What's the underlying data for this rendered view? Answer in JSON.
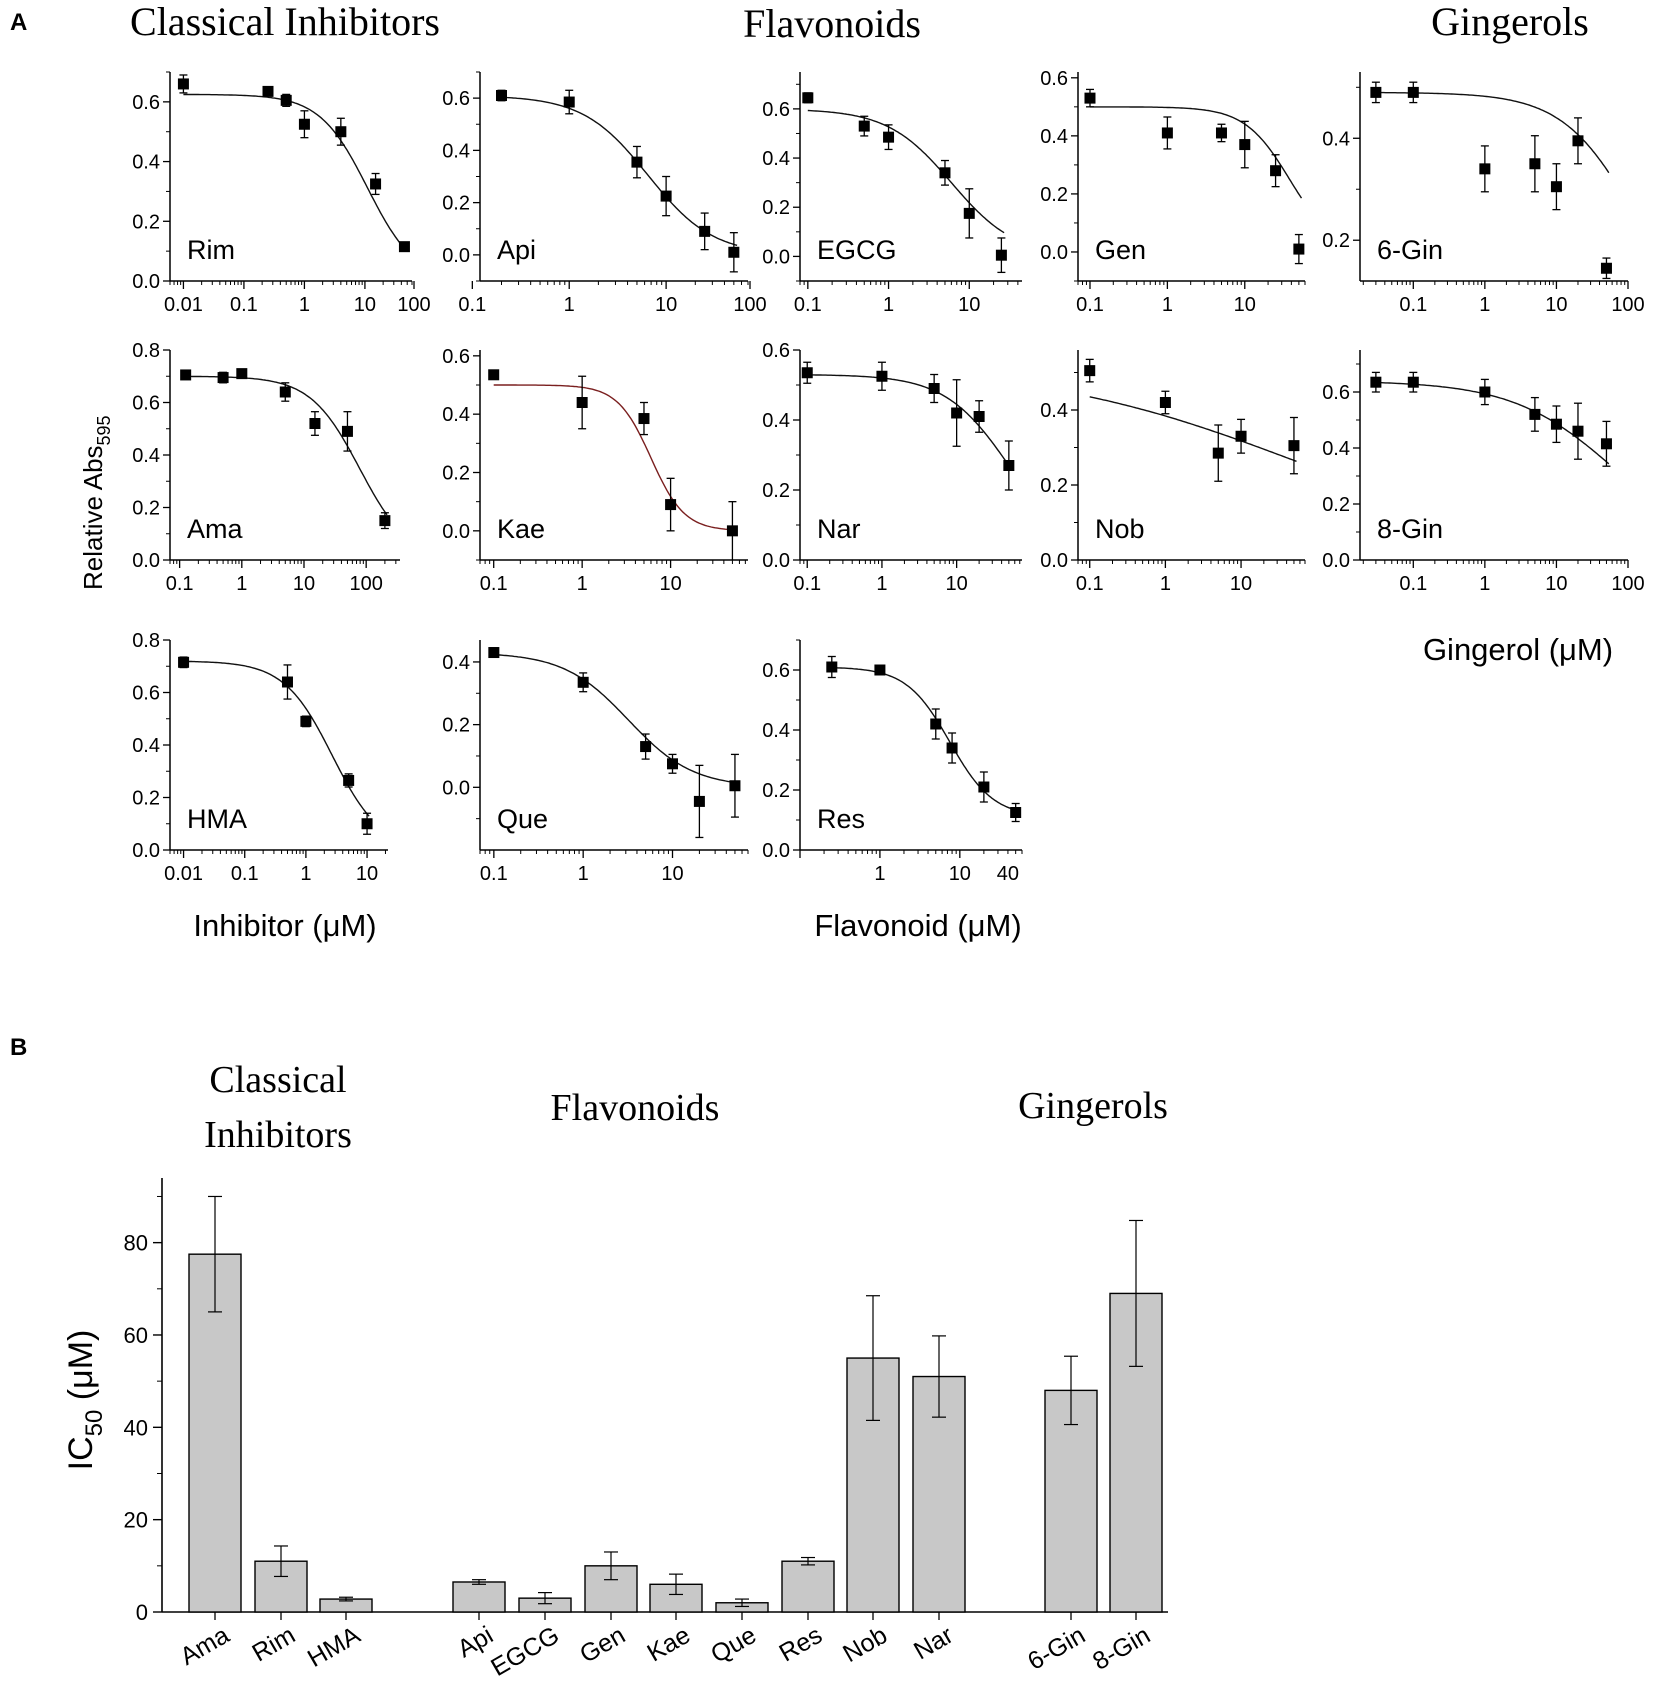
{
  "figure": {
    "panel_a_label": "A",
    "panel_b_label": "B",
    "headers_a": [
      "Classical Inhibitors",
      "Flavonoids",
      "Gingerols"
    ],
    "headers_b": [
      "Classical",
      "Inhibitors",
      "Flavonoids",
      "Gingerols"
    ],
    "ylabel_a": "Relative Abs",
    "ylabel_a_sub": "595",
    "xlabel_inhibitor": "Inhibitor (μM)",
    "xlabel_flavonoid": "Flavonoid (μM)",
    "xlabel_gingerol": "Gingerol (μM)"
  },
  "chart_data": [
    {
      "type": "scatter",
      "title": "Rim",
      "xscale": "log",
      "xlim": [
        0.006,
        60
      ],
      "ylim": [
        0,
        0.7
      ],
      "xticks": [
        0.01,
        0.1,
        1,
        10,
        100
      ],
      "xticklabels": [
        "0.01",
        "0.1",
        "1",
        "10",
        "100"
      ],
      "yticks": [
        0,
        0.2,
        0.4,
        0.6
      ],
      "yticklabels": [
        "0.0",
        "0.2",
        "0.4",
        "0.6"
      ],
      "x": [
        0.01,
        0.25,
        0.5,
        1,
        4,
        15,
        45
      ],
      "y": [
        0.66,
        0.635,
        0.605,
        0.525,
        0.5,
        0.325,
        0.115
      ],
      "err": [
        0.03,
        0.015,
        0.02,
        0.045,
        0.045,
        0.035,
        0.015
      ],
      "fit": {
        "top": 0.625,
        "bottom": 0,
        "ic50": 11,
        "hill": 1.1,
        "color": "#111111"
      }
    },
    {
      "type": "scatter",
      "title": "Api",
      "xscale": "log",
      "xlim": [
        0.12,
        70
      ],
      "ylim": [
        -0.1,
        0.7
      ],
      "xticks": [
        0.1,
        1,
        10,
        100
      ],
      "xticklabels": [
        "0.1",
        "1",
        "10",
        "100"
      ],
      "yticks": [
        0,
        0.2,
        0.4,
        0.6
      ],
      "yticklabels": [
        "0.0",
        "0.2",
        "0.4",
        "0.6"
      ],
      "x": [
        0.2,
        1,
        5,
        10,
        25,
        50
      ],
      "y": [
        0.61,
        0.585,
        0.355,
        0.225,
        0.09,
        0.01
      ],
      "err": [
        0.02,
        0.045,
        0.06,
        0.075,
        0.07,
        0.075
      ],
      "fit": {
        "top": 0.61,
        "bottom": 0,
        "ic50": 6.5,
        "hill": 1.3,
        "color": "#111111"
      }
    },
    {
      "type": "scatter",
      "title": "EGCG",
      "xscale": "log",
      "xlim": [
        0.08,
        45
      ],
      "ylim": [
        -0.1,
        0.75
      ],
      "xticks": [
        0.1,
        1,
        10
      ],
      "xticklabels": [
        "0.1",
        "1",
        "10"
      ],
      "yticks": [
        0,
        0.2,
        0.4,
        0.6
      ],
      "yticklabels": [
        "0.0",
        "0.2",
        "0.4",
        "0.6"
      ],
      "x": [
        0.1,
        0.5,
        1,
        5,
        10,
        25
      ],
      "y": [
        0.645,
        0.53,
        0.485,
        0.34,
        0.175,
        0.005
      ],
      "err": [
        0.02,
        0.04,
        0.05,
        0.05,
        0.1,
        0.07
      ],
      "fit": {
        "top": 0.6,
        "bottom": 0,
        "ic50": 6,
        "hill": 1.1,
        "color": "#111111"
      }
    },
    {
      "type": "scatter",
      "title": "Gen",
      "xscale": "log",
      "xlim": [
        0.07,
        60
      ],
      "ylim": [
        -0.1,
        0.62
      ],
      "xticks": [
        0.1,
        1,
        10
      ],
      "xticklabels": [
        "0.1",
        "1",
        "10"
      ],
      "yticks": [
        0,
        0.2,
        0.4,
        0.6
      ],
      "yticklabels": [
        "0.0",
        "0.2",
        "0.4",
        "0.6"
      ],
      "x": [
        0.1,
        1,
        5,
        10,
        25,
        50
      ],
      "y": [
        0.53,
        0.41,
        0.41,
        0.37,
        0.28,
        0.01
      ],
      "err": [
        0.03,
        0.055,
        0.03,
        0.08,
        0.055,
        0.05
      ],
      "fit": {
        "top": 0.5,
        "bottom": 0,
        "ic50": 38,
        "hill": 1.5,
        "color": "#111111"
      }
    },
    {
      "type": "scatter",
      "title": "6-Gin",
      "xscale": "log",
      "xlim": [
        0.018,
        100
      ],
      "ylim": [
        0.12,
        0.53
      ],
      "xticks": [
        0.1,
        1,
        10,
        100
      ],
      "xticklabels": [
        "0.1",
        "1",
        "10",
        "100"
      ],
      "yticks": [
        0.2,
        0.4
      ],
      "yticklabels": [
        "0.2",
        "0.4"
      ],
      "x": [
        0.03,
        0.1,
        1,
        5,
        10,
        20,
        50
      ],
      "y": [
        0.49,
        0.49,
        0.34,
        0.35,
        0.305,
        0.395,
        0.145
      ],
      "err": [
        0.02,
        0.02,
        0.045,
        0.055,
        0.045,
        0.045,
        0.02
      ],
      "fit": {
        "top": 0.49,
        "bottom": 0,
        "ic50": 130,
        "hill": 0.85,
        "color": "#111111"
      }
    },
    {
      "type": "scatter",
      "title": "Ama",
      "xscale": "log",
      "xlim": [
        0.07,
        350
      ],
      "ylim": [
        0,
        0.8
      ],
      "xticks": [
        0.1,
        1,
        10,
        100
      ],
      "xticklabels": [
        "0.1",
        "1",
        "10",
        "100"
      ],
      "yticks": [
        0,
        0.2,
        0.4,
        0.6,
        0.8
      ],
      "yticklabels": [
        "0.0",
        "0.2",
        "0.4",
        "0.6",
        "0.8"
      ],
      "x": [
        0.125,
        0.5,
        1,
        5,
        15,
        50,
        200
      ],
      "y": [
        0.705,
        0.695,
        0.71,
        0.64,
        0.52,
        0.49,
        0.15
      ],
      "err": [
        0.015,
        0.02,
        0.015,
        0.035,
        0.045,
        0.075,
        0.03
      ],
      "fit": {
        "top": 0.7,
        "bottom": 0,
        "ic50": 78,
        "hill": 1.1,
        "color": "#111111"
      }
    },
    {
      "type": "scatter",
      "title": "Kae",
      "xscale": "log",
      "xlim": [
        0.07,
        75
      ],
      "ylim": [
        -0.1,
        0.62
      ],
      "xticks": [
        0.1,
        1,
        10
      ],
      "xticklabels": [
        "0.1",
        "1",
        "10"
      ],
      "yticks": [
        0,
        0.2,
        0.4,
        0.6
      ],
      "yticklabels": [
        "0.0",
        "0.2",
        "0.4",
        "0.6"
      ],
      "x": [
        0.1,
        1,
        5,
        10,
        50
      ],
      "y": [
        0.535,
        0.44,
        0.385,
        0.09,
        0.0
      ],
      "err": [
        0.015,
        0.09,
        0.055,
        0.09,
        0.1
      ],
      "fit": {
        "top": 0.5,
        "bottom": 0,
        "ic50": 6,
        "hill": 2.3,
        "color": "#7a1f1f"
      }
    },
    {
      "type": "scatter",
      "title": "Nar",
      "xscale": "log",
      "xlim": [
        0.08,
        75
      ],
      "ylim": [
        0,
        0.6
      ],
      "xticks": [
        0.1,
        1,
        10
      ],
      "xticklabels": [
        "0.1",
        "1",
        "10"
      ],
      "yticks": [
        0,
        0.2,
        0.4,
        0.6
      ],
      "yticklabels": [
        "0.0",
        "0.2",
        "0.4",
        "0.6"
      ],
      "x": [
        0.1,
        1,
        5,
        10,
        20,
        50
      ],
      "y": [
        0.535,
        0.525,
        0.49,
        0.42,
        0.41,
        0.27
      ],
      "err": [
        0.03,
        0.04,
        0.04,
        0.095,
        0.045,
        0.07
      ],
      "fit": {
        "top": 0.53,
        "bottom": 0,
        "ic50": 52,
        "hill": 1.0,
        "color": "#111111"
      }
    },
    {
      "type": "scatter",
      "title": "Nob",
      "xscale": "log",
      "xlim": [
        0.07,
        70
      ],
      "ylim": [
        0,
        0.56
      ],
      "xticks": [
        0.1,
        1,
        10
      ],
      "xticklabels": [
        "0.1",
        "1",
        "10"
      ],
      "yticks": [
        0,
        0.2,
        0.4
      ],
      "yticklabels": [
        "0.0",
        "0.2",
        "0.4"
      ],
      "x": [
        0.1,
        1,
        5,
        10,
        50
      ],
      "y": [
        0.505,
        0.42,
        0.285,
        0.33,
        0.305
      ],
      "err": [
        0.03,
        0.03,
        0.075,
        0.045,
        0.075
      ],
      "fit": {
        "top": 0.525,
        "bottom": 0,
        "ic50": 55,
        "hill": 0.25,
        "color": "#111111"
      }
    },
    {
      "type": "scatter",
      "title": "8-Gin",
      "xscale": "log",
      "xlim": [
        0.018,
        100
      ],
      "ylim": [
        0,
        0.75
      ],
      "xticks": [
        0.1,
        1,
        10,
        100
      ],
      "xticklabels": [
        "0.1",
        "1",
        "10",
        "100"
      ],
      "yticks": [
        0,
        0.2,
        0.4,
        0.6
      ],
      "yticklabels": [
        "0.0",
        "0.2",
        "0.4",
        "0.6"
      ],
      "x": [
        0.03,
        0.1,
        1,
        5,
        10,
        20,
        50
      ],
      "y": [
        0.635,
        0.635,
        0.6,
        0.52,
        0.485,
        0.46,
        0.415
      ],
      "err": [
        0.035,
        0.035,
        0.045,
        0.06,
        0.065,
        0.1,
        0.08
      ],
      "fit": {
        "top": 0.64,
        "bottom": 0,
        "ic50": 69,
        "hill": 0.6,
        "color": "#111111"
      }
    },
    {
      "type": "scatter",
      "title": "HMA",
      "xscale": "log",
      "xlim": [
        0.006,
        22
      ],
      "ylim": [
        0,
        0.8
      ],
      "xticks": [
        0.01,
        0.1,
        1,
        10
      ],
      "xticklabels": [
        "0.01",
        "0.1",
        "1",
        "10"
      ],
      "yticks": [
        0,
        0.2,
        0.4,
        0.6,
        0.8
      ],
      "yticklabels": [
        "0.0",
        "0.2",
        "0.4",
        "0.6",
        "0.8"
      ],
      "x": [
        0.01,
        0.5,
        1,
        5,
        10
      ],
      "y": [
        0.715,
        0.64,
        0.49,
        0.265,
        0.1
      ],
      "err": [
        0.02,
        0.065,
        0.02,
        0.025,
        0.04
      ],
      "fit": {
        "top": 0.72,
        "bottom": 0,
        "ic50": 2.7,
        "hill": 1.1,
        "color": "#111111"
      }
    },
    {
      "type": "scatter",
      "title": "Que",
      "xscale": "log",
      "xlim": [
        0.07,
        70
      ],
      "ylim": [
        -0.2,
        0.47
      ],
      "xticks": [
        0.1,
        1,
        10
      ],
      "xticklabels": [
        "0.1",
        "1",
        "10"
      ],
      "yticks": [
        0,
        0.2,
        0.4
      ],
      "yticklabels": [
        "0.0",
        "0.2",
        "0.4"
      ],
      "x": [
        0.1,
        1,
        5,
        10,
        20,
        50
      ],
      "y": [
        0.43,
        0.335,
        0.13,
        0.075,
        -0.045,
        0.005
      ],
      "err": [
        0.015,
        0.03,
        0.04,
        0.03,
        0.115,
        0.1
      ],
      "fit": {
        "top": 0.43,
        "bottom": 0,
        "ic50": 3.2,
        "hill": 1.2,
        "color": "#111111"
      }
    },
    {
      "type": "scatter",
      "title": "Res",
      "xscale": "log",
      "xlim": [
        0.1,
        60
      ],
      "ylim": [
        0,
        0.7
      ],
      "xticks": [
        1,
        10,
        40
      ],
      "xticklabels": [
        "1",
        "10",
        "40"
      ],
      "yticks": [
        0,
        0.2,
        0.4,
        0.6
      ],
      "yticklabels": [
        "0.0",
        "0.2",
        "0.4",
        "0.6"
      ],
      "x": [
        0.25,
        1,
        5,
        8,
        20,
        50
      ],
      "y": [
        0.61,
        0.6,
        0.42,
        0.34,
        0.21,
        0.125
      ],
      "err": [
        0.035,
        0.01,
        0.05,
        0.05,
        0.05,
        0.03
      ],
      "fit": {
        "top": 0.61,
        "bottom": 0.11,
        "ic50": 7.5,
        "hill": 1.6,
        "color": "#111111"
      }
    },
    {
      "type": "bar",
      "title": "IC50",
      "categories": [
        "Ama",
        "Rim",
        "HMA",
        "Api",
        "EGCG",
        "Gen",
        "Kae",
        "Que",
        "Res",
        "Nob",
        "Nar",
        "6-Gin",
        "8-Gin"
      ],
      "values": [
        77.5,
        11,
        2.8,
        6.5,
        3,
        10,
        6,
        2,
        11,
        55,
        51,
        48,
        69
      ],
      "errors": [
        12.5,
        3.3,
        0.4,
        0.5,
        1.2,
        3,
        2.2,
        0.8,
        0.8,
        13.5,
        8.8,
        7.4,
        15.8
      ],
      "ylabel": "IC",
      "ylabel_sub": "50",
      "ylabel_rest": " (μM)",
      "ylim": [
        0,
        94
      ],
      "yticks": [
        0,
        20,
        40,
        60,
        80
      ],
      "yticklabels": [
        "0",
        "20",
        "40",
        "60",
        "80"
      ],
      "bar_color": "#c8c8c8"
    }
  ]
}
